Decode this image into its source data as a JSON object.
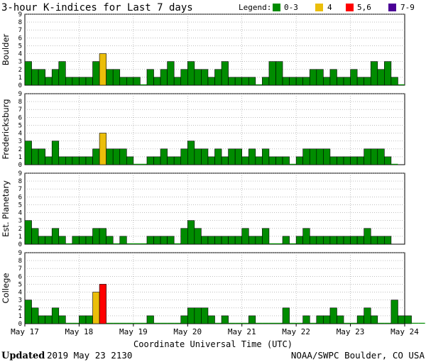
{
  "header": {
    "title": "3-hour K-indices for Last 7 days",
    "legend_label": "Legend:"
  },
  "legend": [
    {
      "label": "0-3",
      "color": "#008c00"
    },
    {
      "label": "4",
      "color": "#ebbe0a"
    },
    {
      "label": "5,6",
      "color": "#ff0000"
    },
    {
      "label": "7-9",
      "color": "#4b0096"
    }
  ],
  "footer": {
    "updated_label": "Updated",
    "updated_value": "2019 May 23 2130",
    "credit": "NOAA/SWPC Boulder, CO USA"
  },
  "chart_data": {
    "type": "bar",
    "xlabel": "Coordinate Universal Time (UTC)",
    "x_tick_labels": [
      "May 17",
      "May 18",
      "May 19",
      "May 20",
      "May 21",
      "May 22",
      "May 23",
      "May 24"
    ],
    "ylim": [
      0,
      9
    ],
    "y_ticks": [
      0,
      1,
      2,
      3,
      4,
      5,
      6,
      7,
      8,
      9
    ],
    "bins_per_day": 8,
    "colors": {
      "0-3": "#008c00",
      "4": "#ebbe0a",
      "5,6": "#ff0000",
      "7-9": "#4b0096"
    },
    "series": [
      {
        "name": "Boulder",
        "values": [
          3,
          2,
          2,
          1,
          2,
          3,
          1,
          1,
          1,
          1,
          3,
          4,
          2,
          2,
          1,
          1,
          1,
          0,
          2,
          1,
          2,
          3,
          1,
          2,
          3,
          2,
          2,
          1,
          2,
          3,
          1,
          1,
          1,
          1,
          0,
          1,
          3,
          3,
          1,
          1,
          1,
          1,
          2,
          2,
          1,
          2,
          1,
          1,
          2,
          1,
          1,
          3,
          2,
          3,
          1,
          0
        ]
      },
      {
        "name": "Fredericksburg",
        "values": [
          3,
          2,
          2,
          1,
          3,
          1,
          1,
          1,
          1,
          1,
          2,
          4,
          2,
          2,
          2,
          1,
          0,
          0,
          1,
          1,
          2,
          1,
          1,
          2,
          3,
          2,
          2,
          1,
          2,
          1,
          2,
          2,
          1,
          2,
          1,
          2,
          1,
          1,
          1,
          0,
          1,
          2,
          2,
          2,
          2,
          1,
          1,
          1,
          1,
          1,
          2,
          2,
          2,
          1,
          0
        ]
      },
      {
        "name": "Est. Planetary",
        "values": [
          3,
          2,
          1,
          1,
          2,
          1,
          0,
          1,
          1,
          1,
          2,
          2,
          1,
          0,
          1,
          0,
          0,
          0,
          1,
          1,
          1,
          1,
          0,
          2,
          3,
          2,
          1,
          1,
          1,
          1,
          1,
          1,
          2,
          1,
          1,
          2,
          0,
          0,
          1,
          0,
          1,
          2,
          1,
          1,
          1,
          1,
          1,
          1,
          1,
          1,
          2,
          1,
          1,
          1
        ]
      },
      {
        "name": "College",
        "values": [
          3,
          2,
          1,
          1,
          2,
          1,
          0,
          0,
          1,
          1,
          4,
          5,
          0,
          0,
          0,
          0,
          0,
          0,
          1,
          0,
          0,
          0,
          0,
          1,
          2,
          2,
          2,
          1,
          0,
          1,
          0,
          0,
          0,
          1,
          0,
          0,
          0,
          0,
          2,
          0,
          0,
          1,
          0,
          1,
          1,
          2,
          1,
          0,
          0,
          1,
          2,
          1,
          0,
          0,
          3,
          1,
          1,
          0,
          0
        ]
      }
    ]
  }
}
